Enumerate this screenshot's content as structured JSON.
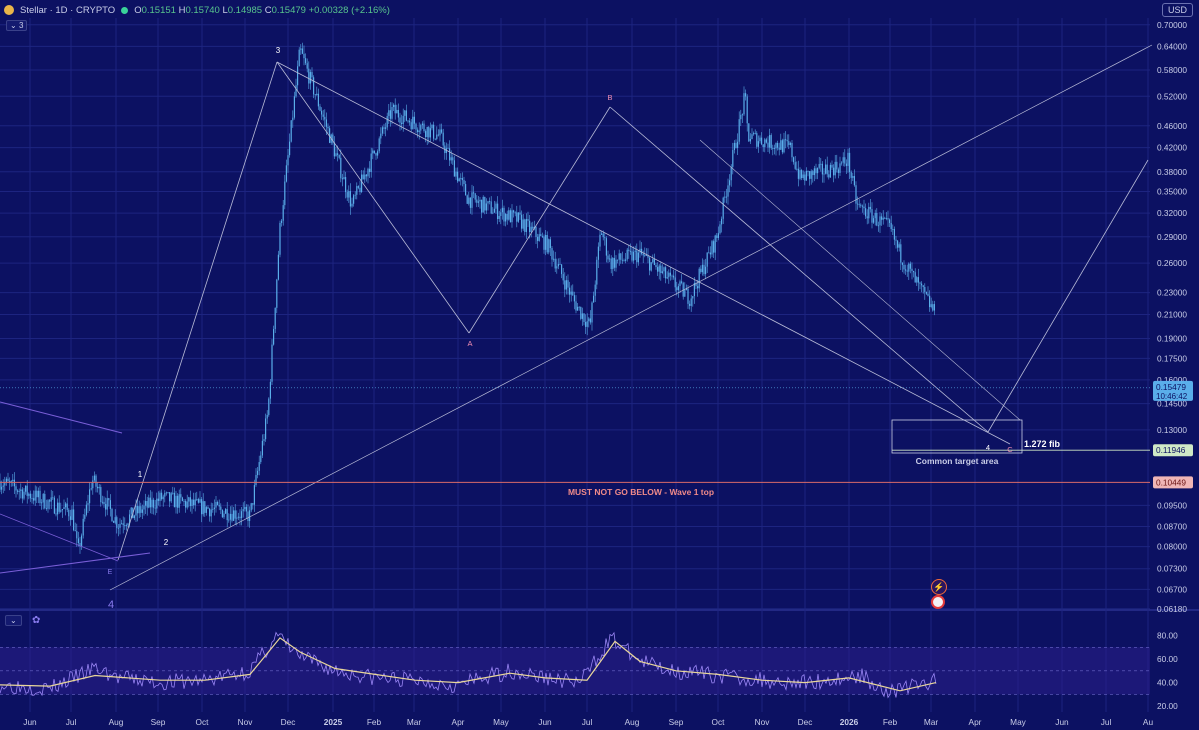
{
  "header": {
    "symbol": "Stellar · 1D · CRYPTO",
    "open_label": "O",
    "open": "0.15151",
    "high_label": "H",
    "high": "0.15740",
    "low_label": "L",
    "low": "0.14985",
    "close_label": "C",
    "close": "0.15479",
    "change": "+0.00328 (+2.16%)",
    "indicator_count": "3",
    "currency": "USD"
  },
  "colors": {
    "background": "#0c1162",
    "candle": "#5aaeea",
    "rsi": "#9a86f5",
    "rsi_ma": "#e9d79a",
    "alert_line": "#d96a6a",
    "wave_label": "#ffffff",
    "corrective_label": "#f28fb2"
  },
  "chart_data": [
    {
      "type": "candlestick",
      "title": "Stellar · 1D · CRYPTO",
      "y_scale": "log",
      "ylim": [
        0.062,
        0.72
      ],
      "y_ticks": [
        "0.70000",
        "0.64000",
        "0.58000",
        "0.52000",
        "0.46000",
        "0.42000",
        "0.38000",
        "0.35000",
        "0.32000",
        "0.29000",
        "0.26000",
        "0.23000",
        "0.21000",
        "0.19000",
        "0.17500",
        "0.16000",
        "0.14500",
        "0.13000",
        "0.11946",
        "0.10449",
        "0.09500",
        "0.08700",
        "0.08000",
        "0.07300",
        "0.06700",
        "0.06180"
      ],
      "x_ticks": [
        "Jun",
        "Jul",
        "Aug",
        "Sep",
        "Oct",
        "Nov",
        "Dec",
        "2025",
        "Feb",
        "Mar",
        "Apr",
        "May",
        "Jun",
        "Jul",
        "Aug",
        "Sep",
        "Oct",
        "Nov",
        "Dec",
        "2026",
        "Feb",
        "Mar",
        "Apr",
        "May",
        "Jun",
        "Jul",
        "Au"
      ],
      "series": [
        {
          "values": [
            [
              "Jun",
              0.105
            ],
            [
              "Jul",
              0.092
            ],
            [
              "Aug",
              0.078
            ],
            [
              "Aug",
              0.106
            ],
            [
              "Sep",
              0.088
            ],
            [
              "Sep",
              0.098
            ],
            [
              "Oct",
              0.094
            ],
            [
              "Nov",
              0.091
            ],
            [
              "Nov",
              0.14
            ],
            [
              "Nov",
              0.3
            ],
            [
              "Dec",
              0.63
            ],
            [
              "Dec",
              0.44
            ],
            [
              "Dec",
              0.33
            ],
            [
              "2025",
              0.49
            ],
            [
              "2025",
              0.44
            ],
            [
              "Feb",
              0.34
            ],
            [
              "Feb",
              0.31
            ],
            [
              "Mar",
              0.28
            ],
            [
              "Apr",
              0.22
            ],
            [
              "Apr",
              0.2
            ],
            [
              "May",
              0.3
            ],
            [
              "May",
              0.26
            ],
            [
              "Jun",
              0.27
            ],
            [
              "Jun",
              0.225
            ],
            [
              "Jul",
              0.29
            ],
            [
              "Jul",
              0.52
            ],
            [
              "Aug",
              0.44
            ],
            [
              "Aug",
              0.42
            ],
            [
              "Sep",
              0.37
            ],
            [
              "Sep",
              0.39
            ],
            [
              "Oct",
              0.4
            ],
            [
              "Oct",
              0.33
            ],
            [
              "Nov",
              0.3
            ],
            [
              "Nov",
              0.27
            ],
            [
              "Dec",
              0.24
            ],
            [
              "Dec",
              0.21
            ],
            [
              "2026",
              0.24
            ],
            [
              "2026",
              0.21
            ],
            [
              "Feb",
              0.16
            ],
            [
              "Feb",
              0.17
            ],
            [
              "Mar",
              0.155
            ]
          ]
        }
      ],
      "price_labels": {
        "last": "0.15479",
        "countdown": "10:46:42",
        "fib_level": "0.11946",
        "alert_level": "0.10449"
      },
      "annotations": {
        "wave_labels": [
          "3",
          "1",
          "2",
          "E",
          "4",
          "4"
        ],
        "corrective_labels": [
          "A",
          "B",
          "C"
        ],
        "alert_text": "MUST NOT GO BELOW - Wave 1 top",
        "fib_text": "1.272 fib",
        "target_text": "Common target area"
      }
    },
    {
      "type": "line",
      "title": "RSI",
      "ylim": [
        15,
        100
      ],
      "y_ticks": [
        "80.00",
        "60.00",
        "40.00",
        "20.00"
      ],
      "series": [
        {
          "name": "RSI",
          "values": [
            [
              "Jun",
              38
            ],
            [
              "Jul",
              35
            ],
            [
              "Aug",
              52
            ],
            [
              "Aug",
              44
            ],
            [
              "Sep",
              40
            ],
            [
              "Oct",
              42
            ],
            [
              "Nov",
              50
            ],
            [
              "Dec",
              80
            ],
            [
              "Dec",
              62
            ],
            [
              "2025",
              50
            ],
            [
              "Feb",
              44
            ],
            [
              "Mar",
              42
            ],
            [
              "Apr",
              38
            ],
            [
              "May",
              50
            ],
            [
              "Jun",
              44
            ],
            [
              "Jul",
              40
            ],
            [
              "Jul",
              78
            ],
            [
              "Aug",
              58
            ],
            [
              "Sep",
              50
            ],
            [
              "Oct",
              46
            ],
            [
              "Nov",
              42
            ],
            [
              "Dec",
              40
            ],
            [
              "2026",
              44
            ],
            [
              "2026",
              46
            ],
            [
              "Feb",
              32
            ],
            [
              "Feb",
              36
            ],
            [
              "Mar",
              41
            ]
          ]
        },
        {
          "name": "RSI-based MA",
          "values": [
            [
              "Jun",
              38
            ],
            [
              "Jul",
              37
            ],
            [
              "Aug",
              46
            ],
            [
              "Sep",
              42
            ],
            [
              "Oct",
              42
            ],
            [
              "Nov",
              47
            ],
            [
              "Dec",
              78
            ],
            [
              "Dec",
              66
            ],
            [
              "2025",
              52
            ],
            [
              "Feb",
              47
            ],
            [
              "Mar",
              42
            ],
            [
              "Apr",
              40
            ],
            [
              "May",
              48
            ],
            [
              "Jun",
              44
            ],
            [
              "Jul",
              42
            ],
            [
              "Jul",
              75
            ],
            [
              "Aug",
              58
            ],
            [
              "Sep",
              50
            ],
            [
              "Oct",
              47
            ],
            [
              "Nov",
              42
            ],
            [
              "Dec",
              40
            ],
            [
              "2026",
              44
            ],
            [
              "Feb",
              33
            ],
            [
              "Mar",
              40
            ]
          ]
        }
      ]
    }
  ]
}
